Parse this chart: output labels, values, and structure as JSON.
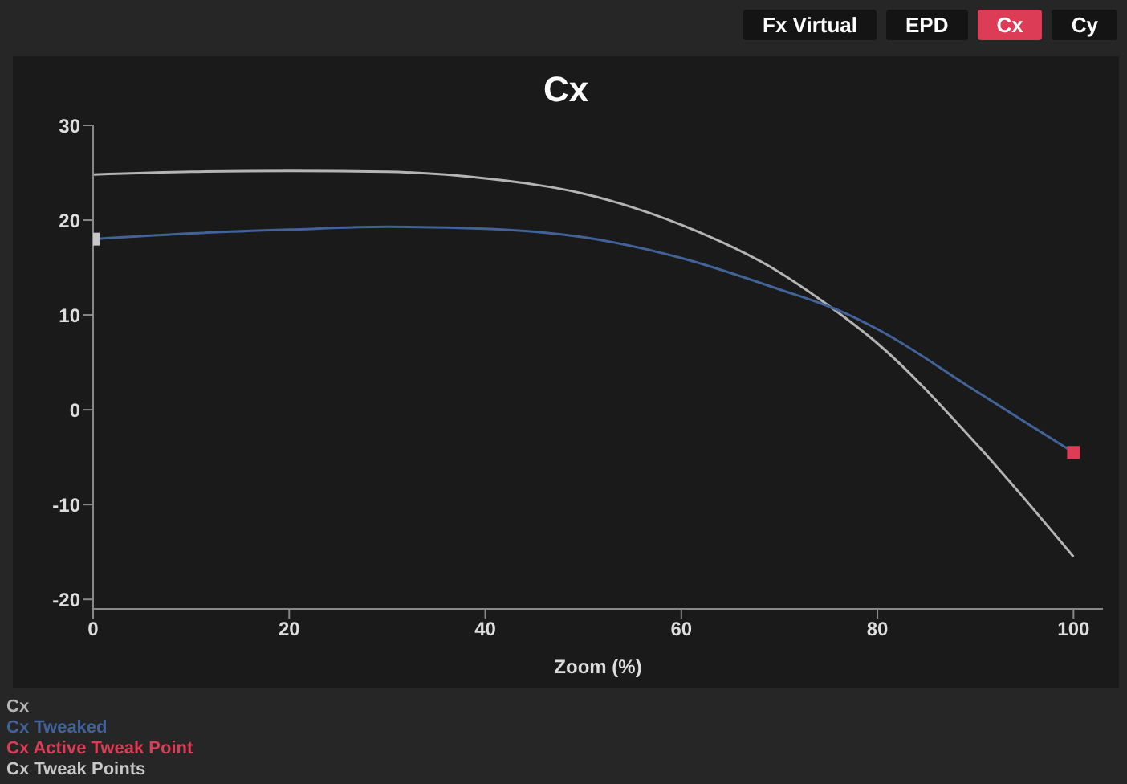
{
  "chart_data": {
    "type": "line",
    "title": "Cx",
    "xlabel": "Zoom (%)",
    "annotations": [
      "Fx Virtual",
      "EPD",
      "Cx",
      "Cy"
    ],
    "xlim": [
      0,
      103
    ],
    "xticks": [
      0,
      20,
      40,
      60,
      80,
      100
    ],
    "ylim": [
      -21,
      30
    ],
    "yticks": [
      -20,
      -10,
      0,
      10,
      20,
      30
    ],
    "grid": false,
    "legend": "bottom",
    "line_style": "solid",
    "series": [
      {
        "name": "Cx",
        "color": "#b4b4b4",
        "marker": "none",
        "x": [
          0,
          10,
          20,
          30,
          40,
          50,
          60,
          70,
          75,
          80,
          90,
          100
        ],
        "values": [
          24.8,
          25.1,
          25.2,
          25.1,
          24.4,
          22.8,
          19.5,
          14.5,
          11,
          7,
          -3.5,
          -15.5
        ]
      },
      {
        "name": "Cx Tweaked",
        "color": "#41639a",
        "marker": "none",
        "x": [
          0,
          10,
          20,
          30,
          40,
          50,
          60,
          70,
          76,
          80,
          90,
          100
        ],
        "values": [
          18,
          18.6,
          19,
          19.3,
          19.1,
          18.2,
          16,
          12.7,
          10.5,
          8.5,
          2,
          -4.5
        ]
      },
      {
        "name": "Cx Active Tweak Point",
        "type": "scatter",
        "color": "#dc3c55",
        "marker": "square",
        "x": [
          100
        ],
        "values": [
          -4.5
        ]
      },
      {
        "name": "Cx Tweak Points",
        "type": "scatter",
        "color": "#c8c8c8",
        "marker": "square",
        "x": [
          0
        ],
        "values": [
          18
        ]
      }
    ]
  }
}
